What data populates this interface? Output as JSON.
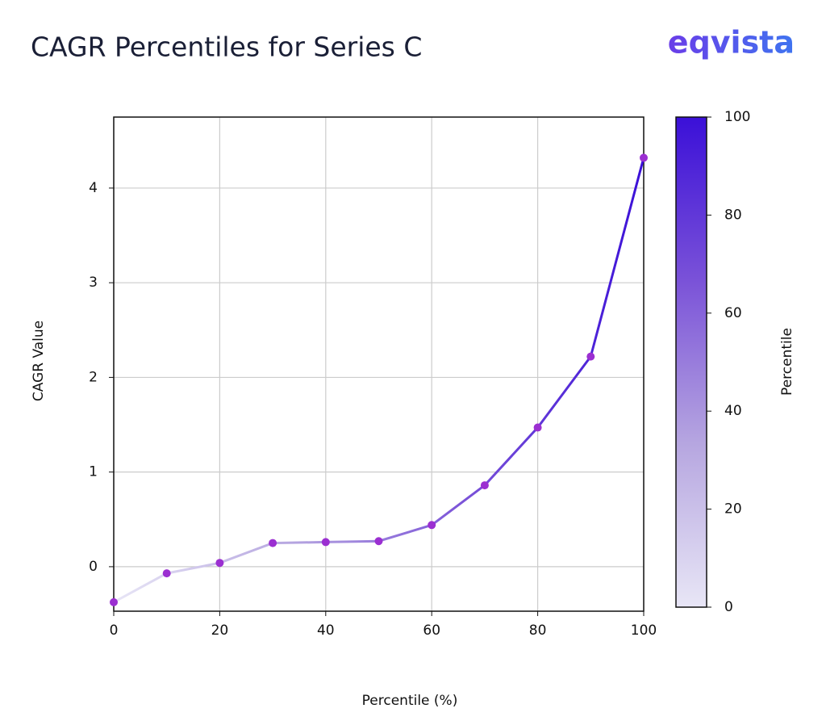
{
  "chart_data": {
    "type": "line",
    "title": "CAGR Percentiles for Series C",
    "logo": "eqvista",
    "x_label": "Percentile (%)",
    "y_label": "CAGR Value",
    "x": [
      0,
      10,
      20,
      30,
      40,
      50,
      60,
      70,
      80,
      90,
      100
    ],
    "series": [
      {
        "values": [
          -0.375,
          -0.07,
          0.04,
          0.25,
          0.26,
          0.27,
          0.44,
          0.86,
          1.47,
          2.22,
          4.32
        ],
        "marker_color": "#9b2fd1"
      }
    ],
    "xlim": [
      0,
      100
    ],
    "xticks": [
      0,
      20,
      40,
      60,
      80,
      100
    ],
    "ylim": [
      -0.47,
      4.75
    ],
    "yticks": [
      0,
      1,
      2,
      3,
      4
    ],
    "grid": true,
    "colormap": [
      "#e8e6f6",
      "#b6a6e0",
      "#7a52d8",
      "#3b10d8"
    ],
    "colorbar": {
      "label": "Percentile",
      "lim": [
        0,
        100
      ],
      "ticks": [
        0,
        20,
        40,
        60,
        80,
        100
      ]
    }
  }
}
